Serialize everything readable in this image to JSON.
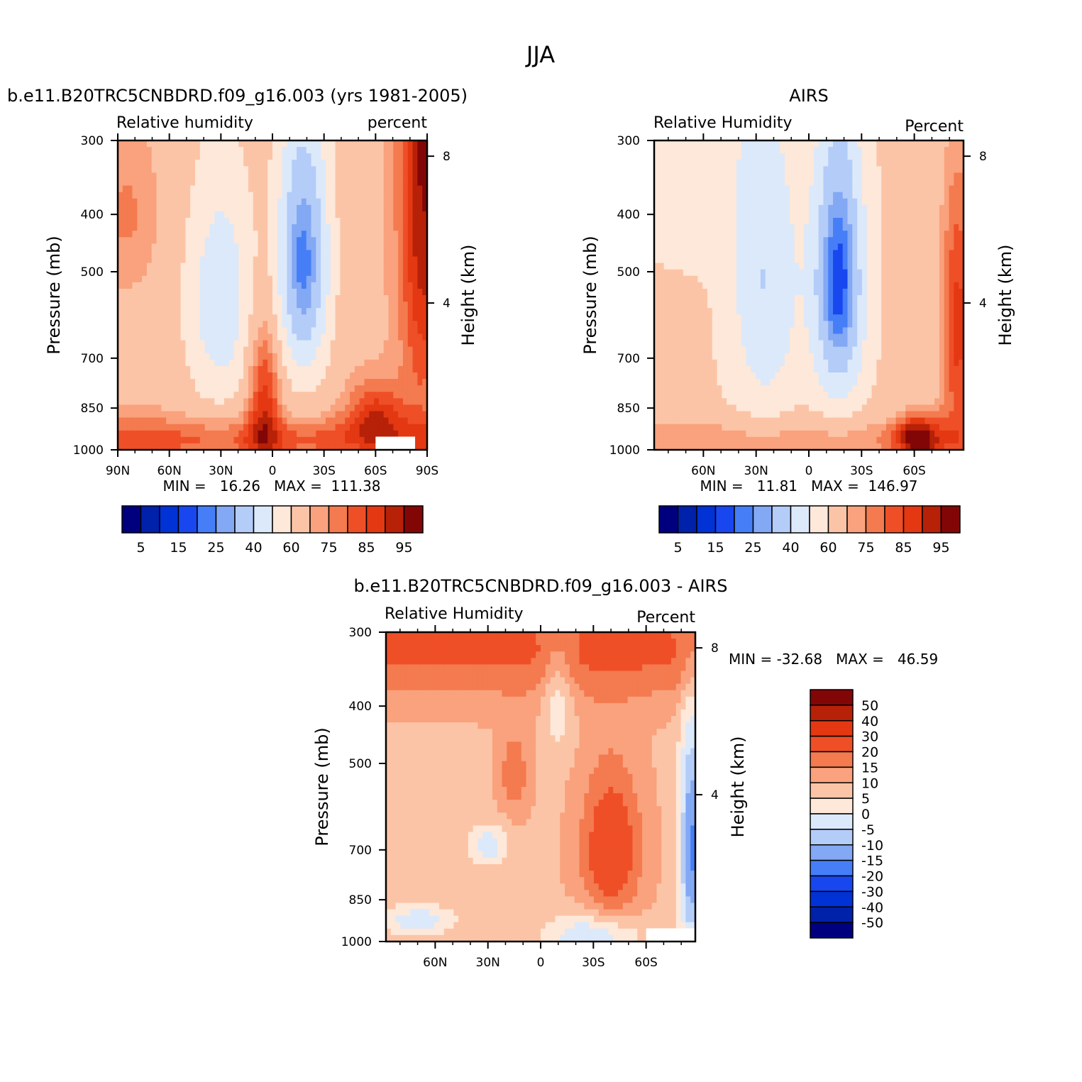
{
  "figure": {
    "title": "JJA"
  },
  "colors": {
    "rh_levels": [
      "#00007f",
      "#0021a9",
      "#0032d6",
      "#1847f0",
      "#467ef7",
      "#83a8f4",
      "#b4ccf8",
      "#dce9fa",
      "#fde8d9",
      "#fcc4a6",
      "#f9a27d",
      "#f47a4f",
      "#ef4f27",
      "#e33812",
      "#b62108",
      "#830607"
    ],
    "diff_levels": [
      "#00007f",
      "#0021a9",
      "#0032d6",
      "#1847f0",
      "#467ef7",
      "#83a8f4",
      "#b4ccf8",
      "#dce9fa",
      "#fde8d9",
      "#fcc4a6",
      "#f9a27d",
      "#f47a4f",
      "#ef4f27",
      "#e33812",
      "#b62108",
      "#830607"
    ]
  },
  "chart_data": [
    {
      "type": "heatmap",
      "title": "b.e11.B20TRC5CNBDRD.f09_g16.003 (yrs 1981-2005)",
      "left_label": "Relative humidity",
      "right_label": "percent",
      "xlabel": "",
      "ylabel": "Pressure (mb)",
      "y2label": "Height (km)",
      "x_ticks": [
        "90N",
        "60N",
        "30N",
        "0",
        "30S",
        "60S",
        "90S"
      ],
      "y_ticks": [
        "300",
        "400",
        "500",
        "700",
        "850",
        "1000"
      ],
      "y2_ticks": [
        "8",
        "4"
      ],
      "stats": "MIN =   16.26   MAX =  111.38",
      "colorbar_labels": [
        "5",
        "15",
        "25",
        "40",
        "60",
        "75",
        "85",
        "95"
      ],
      "x_range": [
        "90N",
        "90S"
      ],
      "y_range": [
        1000,
        300
      ],
      "field_model": "model",
      "missing_box": [
        "60S",
        "83S",
        950,
        1000
      ]
    },
    {
      "type": "heatmap",
      "title": "AIRS",
      "left_label": "Relative Humidity",
      "right_label": "Percent",
      "xlabel": "",
      "ylabel": "Pressure (mb)",
      "y2label": "Height (km)",
      "x_ticks": [
        "60N",
        "30N",
        "0",
        "30S",
        "60S"
      ],
      "y_ticks": [
        "300",
        "400",
        "500",
        "700",
        "850",
        "1000"
      ],
      "y2_ticks": [
        "8",
        "4"
      ],
      "stats": "MIN =   11.81   MAX =  146.97",
      "colorbar_labels": [
        "5",
        "15",
        "25",
        "40",
        "60",
        "75",
        "85",
        "95"
      ],
      "x_range": [
        "88N",
        "88S"
      ],
      "y_range": [
        1000,
        300
      ],
      "field_model": "airs"
    },
    {
      "type": "heatmap",
      "title": "b.e11.B20TRC5CNBDRD.f09_g16.003 - AIRS",
      "left_label": "Relative Humidity",
      "right_label": "Percent",
      "xlabel": "",
      "ylabel": "Pressure (mb)",
      "y2label": "Height (km)",
      "x_ticks": [
        "60N",
        "30N",
        "0",
        "30S",
        "60S"
      ],
      "y_ticks": [
        "300",
        "400",
        "500",
        "700",
        "850",
        "1000"
      ],
      "y2_ticks": [
        "8",
        "4"
      ],
      "stats": "MIN = -32.68   MAX =   46.59",
      "colorbar_labels": [
        "50",
        "40",
        "30",
        "20",
        "15",
        "10",
        "5",
        "0",
        "-5",
        "-10",
        "-15",
        "-20",
        "-30",
        "-40",
        "-50"
      ],
      "x_range": [
        "88N",
        "88S"
      ],
      "y_range": [
        1000,
        300
      ],
      "field_model": "diff",
      "missing_box": [
        "60S",
        "88S",
        950,
        1000
      ]
    }
  ]
}
